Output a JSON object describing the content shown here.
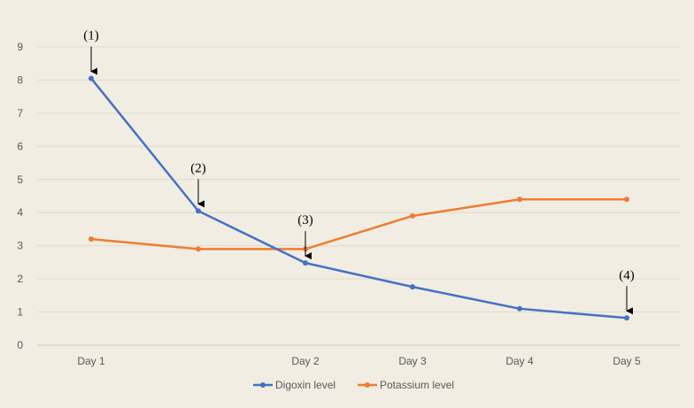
{
  "chart_data": {
    "type": "line",
    "title": "",
    "xlabel": "",
    "ylabel": "",
    "x_categories": [
      "Day 1",
      "",
      "Day 2",
      "Day 3",
      "Day 4",
      "Day 5"
    ],
    "ylim": [
      0,
      9
    ],
    "y_ticks": [
      "0",
      "1",
      "2",
      "3",
      "4",
      "5",
      "6",
      "7",
      "8",
      "9"
    ],
    "grid": true,
    "legend_position": "bottom",
    "series": [
      {
        "name": "Digoxin level",
        "color": "#4472c4",
        "values": [
          8.05,
          4.05,
          2.48,
          1.76,
          1.1,
          0.82
        ]
      },
      {
        "name": "Potassium level",
        "color": "#ed7d31",
        "values": [
          3.2,
          2.9,
          2.9,
          3.9,
          4.4,
          4.4
        ]
      }
    ],
    "annotations": [
      {
        "label": "(1)",
        "category_index": 0,
        "arrow_to_series": 0
      },
      {
        "label": "(2)",
        "category_index": 1,
        "arrow_to_series": 0
      },
      {
        "label": "(3)",
        "category_index": 2,
        "arrow_to_series": 0
      },
      {
        "label": "(4)",
        "category_index": 5,
        "arrow_to_series": 0
      }
    ]
  }
}
